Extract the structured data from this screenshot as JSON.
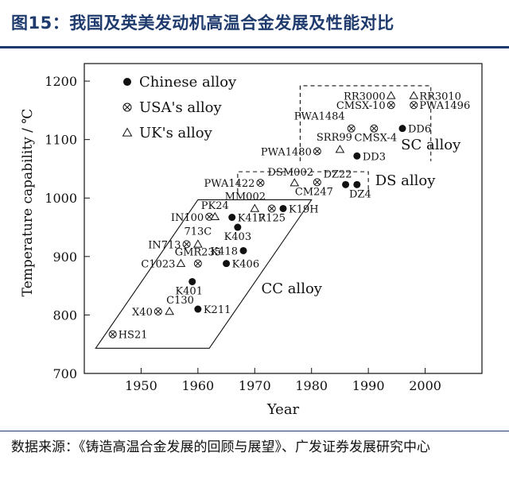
{
  "figure_title": "图15：我国及英美发动机高温合金发展及性能对比",
  "source_text": "数据来源：《铸造高温合金发展的回顾与展望》、广发证券发展研究中心",
  "chart_data": {
    "type": "scatter",
    "xlabel": "Year",
    "ylabel": "Temperature capability / ℃",
    "xlim": [
      1940,
      2010
    ],
    "ylim": [
      700,
      1230
    ],
    "x_ticks": [
      "1950",
      "1960",
      "1970",
      "1980",
      "1990",
      "2000"
    ],
    "y_ticks": [
      "700",
      "800",
      "900",
      "1000",
      "1100",
      "1200"
    ],
    "legend": [
      {
        "marker": "filled-circle",
        "label": "Chinese alloy"
      },
      {
        "marker": "circled-x",
        "label": "USA's alloy"
      },
      {
        "marker": "triangle",
        "label": "UK's alloy"
      }
    ],
    "region_labels": [
      {
        "label": "CC alloy",
        "x": 1976.5,
        "y": 837
      },
      {
        "label": "DS alloy",
        "x": 1996.5,
        "y": 1022
      },
      {
        "label": "SC alloy",
        "x": 2001,
        "y": 1083
      }
    ],
    "series": [
      {
        "name": "Chinese alloy",
        "marker": "filled-circle",
        "points": [
          {
            "label": "K211",
            "x": 1960,
            "y": 810
          },
          {
            "label": "K401",
            "x": 1959,
            "y": 857
          },
          {
            "label": "K406",
            "x": 1965,
            "y": 888
          },
          {
            "label": "K418",
            "x": 1968,
            "y": 910
          },
          {
            "label": "K403",
            "x": 1967,
            "y": 950
          },
          {
            "label": "K417",
            "x": 1966,
            "y": 967
          },
          {
            "label": "K19H",
            "x": 1975,
            "y": 982
          },
          {
            "label": "DZ22",
            "x": 1986,
            "y": 1023
          },
          {
            "label": "DZ4",
            "x": 1988,
            "y": 1023
          },
          {
            "label": "DD3",
            "x": 1988,
            "y": 1072
          },
          {
            "label": "DD6",
            "x": 1996,
            "y": 1119
          }
        ]
      },
      {
        "name": "USA's alloy",
        "marker": "circled-x",
        "points": [
          {
            "label": "HS21",
            "x": 1945,
            "y": 767
          },
          {
            "label": "X40",
            "x": 1953,
            "y": 806
          },
          {
            "label": "GMR235",
            "x": 1960,
            "y": 888
          },
          {
            "label": "IN713",
            "x": 1958,
            "y": 921
          },
          {
            "label": "IN100",
            "x": 1962,
            "y": 968
          },
          {
            "label": "R125",
            "x": 1973,
            "y": 982
          },
          {
            "label": "PWA1422",
            "x": 1971,
            "y": 1026
          },
          {
            "label": "CM247",
            "x": 1981,
            "y": 1027
          },
          {
            "label": "PWA1480",
            "x": 1981,
            "y": 1080
          },
          {
            "label": "PWA1484",
            "x": 1987,
            "y": 1119
          },
          {
            "label": "CMSX-4",
            "x": 1991,
            "y": 1119
          },
          {
            "label": "CMSX-10",
            "x": 1994,
            "y": 1159
          },
          {
            "label": "PWA1496",
            "x": 1998,
            "y": 1159
          }
        ]
      },
      {
        "name": "UK's alloy",
        "marker": "triangle",
        "points": [
          {
            "label": "C130",
            "x": 1955,
            "y": 806
          },
          {
            "label": "C1023",
            "x": 1957,
            "y": 888
          },
          {
            "label": "713C",
            "x": 1960,
            "y": 921
          },
          {
            "label": "PK24",
            "x": 1963,
            "y": 968
          },
          {
            "label": "MM002",
            "x": 1970,
            "y": 982
          },
          {
            "label": "DSM002",
            "x": 1977,
            "y": 1026
          },
          {
            "label": "SRR99",
            "x": 1985,
            "y": 1083
          },
          {
            "label": "RR3000",
            "x": 1994,
            "y": 1175
          },
          {
            "label": "RR3010",
            "x": 1998,
            "y": 1175
          }
        ]
      }
    ]
  }
}
